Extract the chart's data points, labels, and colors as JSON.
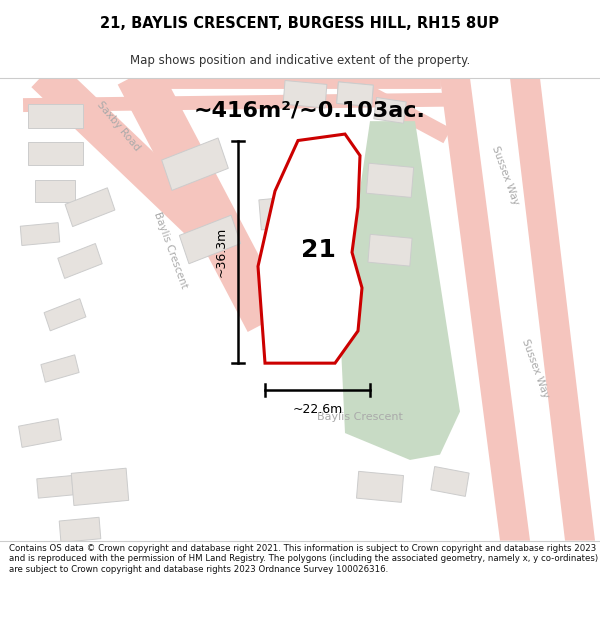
{
  "title": "21, BAYLIS CRESCENT, BURGESS HILL, RH15 8UP",
  "subtitle": "Map shows position and indicative extent of the property.",
  "area_label": "~416m²/~0.103ac.",
  "plot_number": "21",
  "dim_vertical": "~36.3m",
  "dim_horizontal": "~22.6m",
  "footer": "Contains OS data © Crown copyright and database right 2021. This information is subject to Crown copyright and database rights 2023 and is reproduced with the permission of HM Land Registry. The polygons (including the associated geometry, namely x, y co-ordinates) are subject to Crown copyright and database rights 2023 Ordnance Survey 100026316.",
  "map_bg": "#f5f3f2",
  "road_color": "#f5c5be",
  "road_edge": "#e8a09a",
  "green_color": "#c8dbc5",
  "property_fill": "white",
  "property_edge": "#cc0000",
  "building_fill": "#e6e2de",
  "building_edge": "#cccccc",
  "dim_color": "#111111",
  "road_label_color": "#aaaaaa",
  "title_fontsize": 10.5,
  "subtitle_fontsize": 8.5,
  "area_fontsize": 16,
  "plot_fontsize": 18,
  "dim_fontsize": 9,
  "road_label_fontsize": 7.5,
  "footer_fontsize": 6.2
}
